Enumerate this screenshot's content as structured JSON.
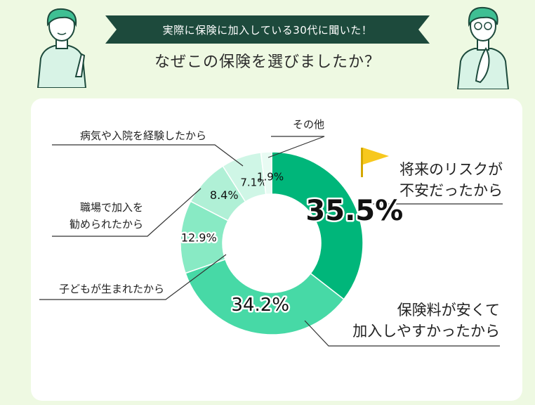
{
  "header": {
    "banner_text": "実際に保険に加入している30代に聞いた！",
    "question": "なぜこの保険を選びましたか？"
  },
  "colors": {
    "banner": "#1d4a3c",
    "page_bg": "#eef9e2",
    "card_bg": "#ffffff",
    "flag": "#f7c81e"
  },
  "chart_data": {
    "type": "pie",
    "donut": true,
    "title": "",
    "slices": [
      {
        "label_lines": [
          "将来のリスクが",
          "不安だったから"
        ],
        "value": 35.5,
        "value_label": "35.5%",
        "color": "#00b67a"
      },
      {
        "label_lines": [
          "保険料が安くて",
          "加入しやすかったから"
        ],
        "value": 34.2,
        "value_label": "34.2%",
        "color": "#47d9a6"
      },
      {
        "label_lines": [
          "子どもが生まれたから"
        ],
        "value": 12.9,
        "value_label": "12.9%",
        "color": "#88eac4"
      },
      {
        "label_lines": [
          "職場で加入を",
          "勧められたから"
        ],
        "value": 8.4,
        "value_label": "8.4%",
        "color": "#b0f0d6"
      },
      {
        "label_lines": [
          "病気や入院を経験したから"
        ],
        "value": 7.1,
        "value_label": "7.1%",
        "color": "#cff6e6"
      },
      {
        "label_lines": [
          "その他"
        ],
        "value": 1.9,
        "value_label": "1.9%",
        "color": "#e8fbf3"
      }
    ]
  }
}
